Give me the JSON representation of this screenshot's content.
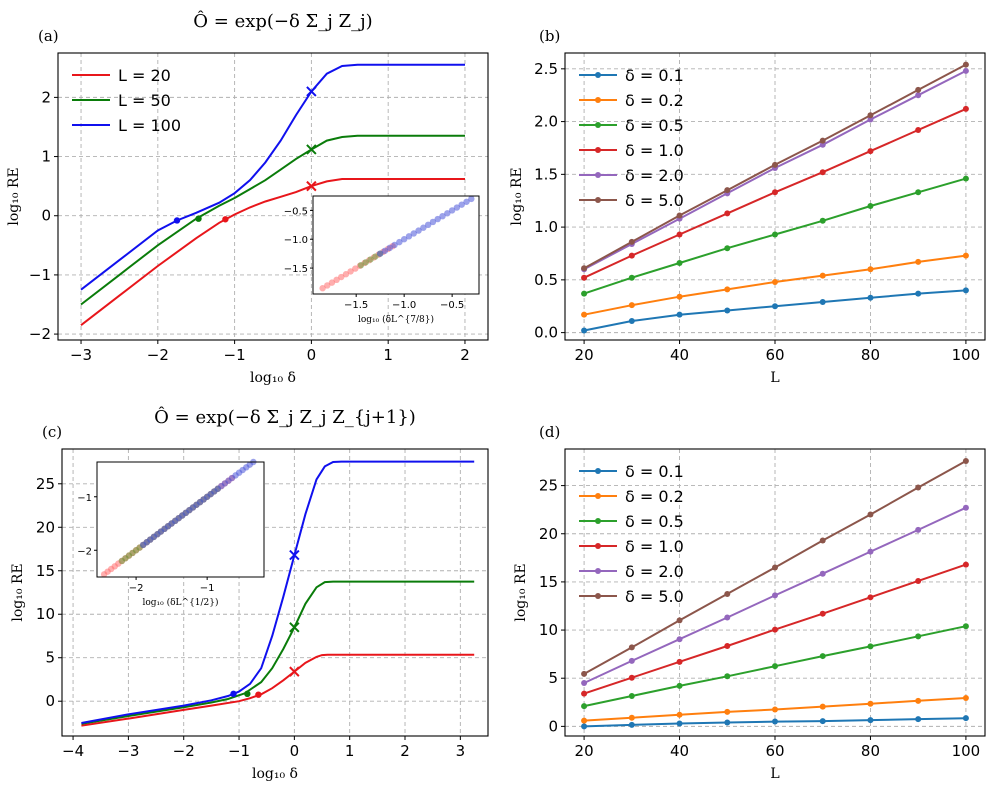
{
  "chart_data": [
    {
      "id": "a",
      "type": "line",
      "panel_label": "(a)",
      "title": "Ô = exp(−δ Σ_j Z_j)",
      "xlabel": "log₁₀ δ",
      "ylabel": "log₁₀ RE",
      "xlim": [
        -3.3,
        2.3
      ],
      "ylim": [
        -2.1,
        2.75
      ],
      "xticks": [
        -3,
        -2,
        -1,
        0,
        1,
        2
      ],
      "xtick_labels": [
        "−3",
        "−2",
        "−1",
        "0",
        "1",
        "2"
      ],
      "yticks": [
        -2,
        -1,
        0,
        1,
        2
      ],
      "ytick_labels": [
        "−2",
        "−1",
        "0",
        "1",
        "2"
      ],
      "legend_position": "upper-left",
      "series": [
        {
          "name": "L = 20",
          "color": "#e8161b",
          "x": [
            -3,
            -2.5,
            -2,
            -1.5,
            -1.2,
            -1.0,
            -0.8,
            -0.6,
            -0.4,
            -0.2,
            0,
            0.2,
            0.4,
            0.6,
            0.8,
            1.0,
            1.5,
            2.0
          ],
          "y": [
            -1.85,
            -1.35,
            -0.85,
            -0.38,
            -0.12,
            0.02,
            0.14,
            0.24,
            0.32,
            0.4,
            0.5,
            0.58,
            0.62,
            0.62,
            0.62,
            0.62,
            0.62,
            0.62
          ],
          "dot": [
            -1.12,
            -0.06
          ],
          "cross": [
            0,
            0.5
          ]
        },
        {
          "name": "L = 50",
          "color": "#0a7c0a",
          "x": [
            -3,
            -2.5,
            -2,
            -1.5,
            -1.2,
            -1.0,
            -0.8,
            -0.6,
            -0.4,
            -0.2,
            0,
            0.2,
            0.4,
            0.6,
            0.8,
            1.0,
            1.5,
            2.0
          ],
          "y": [
            -1.5,
            -1.0,
            -0.5,
            -0.05,
            0.17,
            0.3,
            0.45,
            0.6,
            0.78,
            0.96,
            1.12,
            1.27,
            1.33,
            1.35,
            1.35,
            1.35,
            1.35,
            1.35
          ],
          "dot": [
            -1.47,
            -0.05
          ],
          "cross": [
            0,
            1.12
          ]
        },
        {
          "name": "L = 100",
          "color": "#1010ee",
          "x": [
            -3,
            -2.5,
            -2,
            -1.75,
            -1.5,
            -1.2,
            -1.0,
            -0.8,
            -0.6,
            -0.4,
            -0.2,
            0,
            0.2,
            0.4,
            0.6,
            0.8,
            1.0,
            1.5,
            2.0
          ],
          "y": [
            -1.25,
            -0.75,
            -0.25,
            -0.08,
            0.05,
            0.22,
            0.38,
            0.6,
            0.9,
            1.27,
            1.7,
            2.1,
            2.4,
            2.53,
            2.55,
            2.55,
            2.55,
            2.55,
            2.55
          ],
          "dot": [
            -1.75,
            -0.08
          ],
          "cross": [
            0,
            2.1
          ]
        }
      ],
      "inset": {
        "xlabel": "log₁₀ (δL^{7/8})",
        "xlim": [
          -1.95,
          -0.22
        ],
        "ylim": [
          -1.95,
          -0.25
        ],
        "xticks": [
          -1.5,
          -1.0,
          -0.5
        ],
        "xtick_labels": [
          "−1.5",
          "−1.0",
          "−0.5"
        ],
        "yticks": [
          -1.5,
          -1.0,
          -0.5
        ],
        "ytick_labels": [
          "−1.5",
          "−1.0",
          "−0.5"
        ],
        "points": [
          {
            "color": "#ff6b6b",
            "start": -1.85,
            "end": -1.12
          },
          {
            "color": "#6a9a3a",
            "start": -1.45,
            "end": -1.25
          },
          {
            "color": "#4a55d8",
            "start": -1.25,
            "end": -0.3
          }
        ]
      }
    },
    {
      "id": "b",
      "type": "line",
      "panel_label": "(b)",
      "xlabel": "L",
      "ylabel": "log₁₀ RE",
      "xlim": [
        16,
        104
      ],
      "ylim": [
        -0.07,
        2.65
      ],
      "xticks": [
        20,
        40,
        60,
        80,
        100
      ],
      "xtick_labels": [
        "20",
        "40",
        "60",
        "80",
        "100"
      ],
      "yticks": [
        0,
        0.5,
        1.0,
        1.5,
        2.0,
        2.5
      ],
      "ytick_labels": [
        "0.0",
        "0.5",
        "1.0",
        "1.5",
        "2.0",
        "2.5"
      ],
      "legend_position": "upper-left",
      "x": [
        20,
        30,
        40,
        50,
        60,
        70,
        80,
        90,
        100
      ],
      "series": [
        {
          "name": "δ = 0.1",
          "color": "#1f77b4",
          "values": [
            0.02,
            0.11,
            0.17,
            0.21,
            0.25,
            0.29,
            0.33,
            0.37,
            0.4
          ]
        },
        {
          "name": "δ = 0.2",
          "color": "#ff7f0e",
          "values": [
            0.17,
            0.26,
            0.34,
            0.41,
            0.48,
            0.54,
            0.6,
            0.67,
            0.73
          ]
        },
        {
          "name": "δ = 0.5",
          "color": "#2ca02c",
          "values": [
            0.37,
            0.52,
            0.66,
            0.8,
            0.93,
            1.06,
            1.2,
            1.33,
            1.46
          ]
        },
        {
          "name": "δ = 1.0",
          "color": "#d62728",
          "values": [
            0.52,
            0.73,
            0.93,
            1.13,
            1.33,
            1.52,
            1.72,
            1.92,
            2.12
          ]
        },
        {
          "name": "δ = 2.0",
          "color": "#9467bd",
          "values": [
            0.6,
            0.84,
            1.08,
            1.32,
            1.56,
            1.78,
            2.02,
            2.25,
            2.48
          ]
        },
        {
          "name": "δ = 5.0",
          "color": "#8c564b",
          "values": [
            0.61,
            0.86,
            1.11,
            1.35,
            1.59,
            1.82,
            2.06,
            2.3,
            2.54
          ]
        }
      ]
    },
    {
      "id": "c",
      "type": "line",
      "panel_label": "(c)",
      "title": "Ô = exp(−δ Σ_j Z_j Z_{j+1})",
      "xlabel": "log₁₀ δ",
      "ylabel": "log₁₀ RE",
      "xlim": [
        -4.2,
        3.5
      ],
      "ylim": [
        -4.0,
        29.0
      ],
      "xticks": [
        -4,
        -3,
        -2,
        -1,
        0,
        1,
        2,
        3
      ],
      "xtick_labels": [
        "−4",
        "−3",
        "−2",
        "−1",
        "0",
        "1",
        "2",
        "3"
      ],
      "yticks": [
        0,
        5,
        10,
        15,
        20,
        25
      ],
      "ytick_labels": [
        "0",
        "5",
        "10",
        "15",
        "20",
        "25"
      ],
      "series": [
        {
          "name": "L = 20",
          "color": "#e8161b",
          "x": [
            -3.85,
            -3,
            -2,
            -1.5,
            -1.0,
            -0.8,
            -0.6,
            -0.4,
            -0.2,
            0,
            0.2,
            0.4,
            0.5,
            0.6,
            0.8,
            1.5,
            2.5,
            3.25
          ],
          "y": [
            -2.8,
            -2.0,
            -1.0,
            -0.5,
            0.0,
            0.35,
            0.8,
            1.5,
            2.4,
            3.4,
            4.4,
            5.1,
            5.3,
            5.35,
            5.35,
            5.35,
            5.35,
            5.35
          ],
          "dot": [
            -0.65,
            0.75
          ],
          "cross": [
            0,
            3.4
          ]
        },
        {
          "name": "L = 50",
          "color": "#0a7c0a",
          "x": [
            -3.85,
            -3,
            -2,
            -1.5,
            -1.2,
            -0.9,
            -0.6,
            -0.4,
            -0.2,
            0,
            0.2,
            0.4,
            0.55,
            0.7,
            1.0,
            2.0,
            3.25
          ],
          "y": [
            -2.6,
            -1.7,
            -0.7,
            -0.15,
            0.25,
            0.9,
            2.2,
            3.8,
            6.0,
            8.5,
            11.2,
            13.1,
            13.7,
            13.75,
            13.75,
            13.75,
            13.75
          ],
          "dot": [
            -0.85,
            0.85
          ],
          "cross": [
            0,
            8.5
          ]
        },
        {
          "name": "L = 100",
          "color": "#1010ee",
          "x": [
            -3.85,
            -3,
            -2,
            -1.5,
            -1.2,
            -1.0,
            -0.8,
            -0.6,
            -0.4,
            -0.2,
            0,
            0.2,
            0.4,
            0.55,
            0.7,
            0.85,
            1.0,
            2.0,
            3.25
          ],
          "y": [
            -2.5,
            -1.5,
            -0.5,
            0.1,
            0.6,
            1.1,
            2.0,
            3.8,
            7.5,
            12.0,
            16.8,
            21.5,
            25.5,
            27.0,
            27.5,
            27.55,
            27.55,
            27.55,
            27.55
          ],
          "dot": [
            -1.1,
            0.85
          ],
          "cross": [
            0,
            16.8
          ]
        }
      ],
      "inset": {
        "xlabel": "log₁₀ (δL^{1/2})",
        "xlim": [
          -2.55,
          -0.2
        ],
        "ylim": [
          -2.5,
          -0.35
        ],
        "xticks": [
          -2,
          -1
        ],
        "xtick_labels": [
          "−2",
          "−1"
        ],
        "yticks": [
          -2,
          -1
        ],
        "ytick_labels": [
          "−2",
          "−1"
        ],
        "points": [
          {
            "color": "#ff6b6b",
            "start": -2.45,
            "end": -0.65
          },
          {
            "color": "#6a9a3a",
            "start": -2.2,
            "end": -0.85
          },
          {
            "color": "#4a55d8",
            "start": -1.9,
            "end": -0.35
          }
        ]
      }
    },
    {
      "id": "d",
      "type": "line",
      "panel_label": "(d)",
      "xlabel": "L",
      "ylabel": "log₁₀ RE",
      "xlim": [
        16,
        104
      ],
      "ylim": [
        -1.0,
        28.8
      ],
      "xticks": [
        20,
        40,
        60,
        80,
        100
      ],
      "xtick_labels": [
        "20",
        "40",
        "60",
        "80",
        "100"
      ],
      "yticks": [
        0,
        5,
        10,
        15,
        20,
        25
      ],
      "ytick_labels": [
        "0",
        "5",
        "10",
        "15",
        "20",
        "25"
      ],
      "legend_position": "upper-left",
      "x": [
        20,
        30,
        40,
        50,
        60,
        70,
        80,
        90,
        100
      ],
      "series": [
        {
          "name": "δ = 0.1",
          "color": "#1f77b4",
          "values": [
            0.0,
            0.15,
            0.3,
            0.4,
            0.5,
            0.55,
            0.65,
            0.75,
            0.85
          ]
        },
        {
          "name": "δ = 0.2",
          "color": "#ff7f0e",
          "values": [
            0.6,
            0.9,
            1.2,
            1.5,
            1.75,
            2.05,
            2.35,
            2.65,
            2.95
          ]
        },
        {
          "name": "δ = 0.5",
          "color": "#2ca02c",
          "values": [
            2.1,
            3.15,
            4.2,
            5.2,
            6.25,
            7.3,
            8.3,
            9.35,
            10.4
          ]
        },
        {
          "name": "δ = 1.0",
          "color": "#d62728",
          "values": [
            3.4,
            5.05,
            6.7,
            8.35,
            10.05,
            11.7,
            13.4,
            15.1,
            16.8
          ]
        },
        {
          "name": "δ = 2.0",
          "color": "#9467bd",
          "values": [
            4.5,
            6.8,
            9.05,
            11.3,
            13.6,
            15.85,
            18.15,
            20.4,
            22.7
          ]
        },
        {
          "name": "δ = 5.0",
          "color": "#8c564b",
          "values": [
            5.45,
            8.2,
            11.0,
            13.75,
            16.5,
            19.3,
            22.0,
            24.8,
            27.55
          ]
        }
      ]
    }
  ]
}
